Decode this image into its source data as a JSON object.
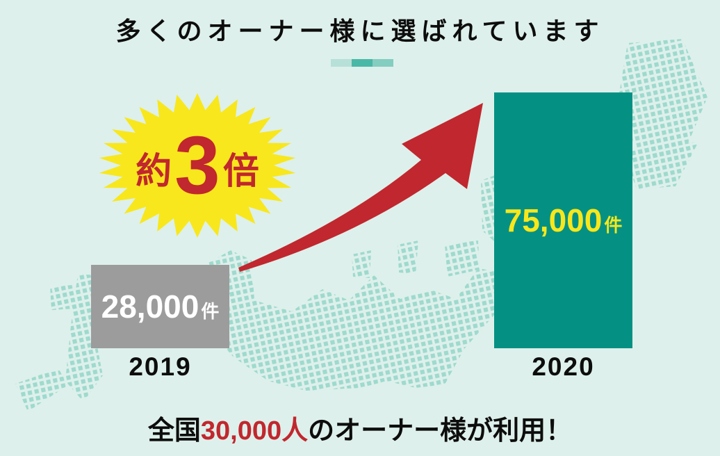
{
  "header": {
    "title": "多くのオーナー様に選ばれています"
  },
  "badge": {
    "prefix": "約",
    "number": "3",
    "suffix": "倍"
  },
  "footer": {
    "prefix": "全国",
    "highlight": "30,000人",
    "suffix": "のオーナー様が利用！"
  },
  "chart_data": {
    "type": "bar",
    "title": "多くのオーナー様に選ばれています",
    "categories": [
      "2019",
      "2020"
    ],
    "values": [
      28000,
      75000
    ],
    "unit": "件",
    "ylim": [
      0,
      80000
    ],
    "grid": false,
    "legend": false,
    "bars": [
      {
        "year": "2019",
        "value": 28000,
        "label": "28,000",
        "unit": "件",
        "color": "#9c9c9c",
        "label_color": "#ffffff"
      },
      {
        "year": "2020",
        "value": 75000,
        "label": "75,000",
        "unit": "件",
        "color": "#049183",
        "label_color": "#f8e71c"
      }
    ],
    "growth_multiplier_label": "約3倍",
    "annotation": "全国30,000人のオーナー様が利用！"
  },
  "colors": {
    "background": "#def0eb",
    "map_dots": "#9edacd",
    "accent_red": "#c1272e",
    "star_yellow": "#f8e71c",
    "bar_2019": "#9c9c9c",
    "bar_2020": "#049183",
    "text": "#0d0d0d",
    "deco_segments": [
      "#b7e0d8",
      "#4ab8a6",
      "#83cec0"
    ]
  }
}
